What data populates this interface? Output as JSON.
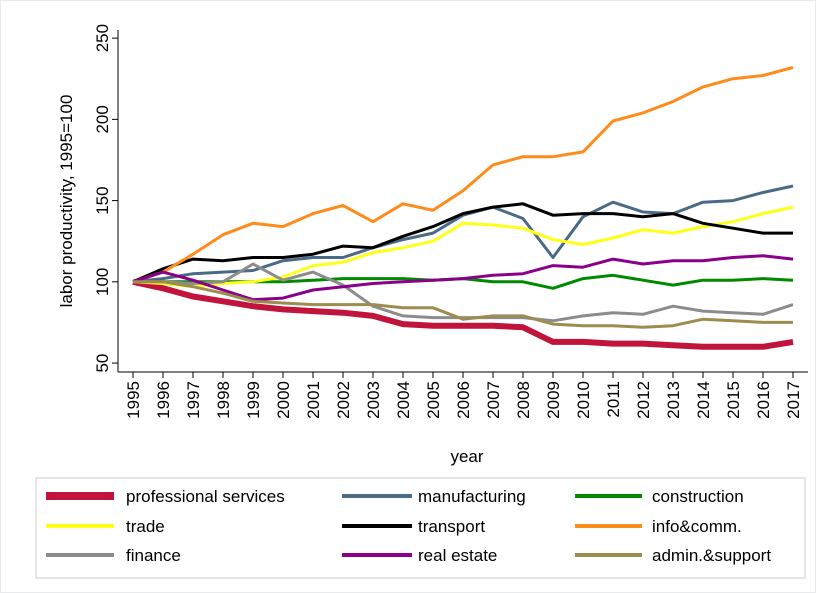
{
  "chart_data": {
    "type": "line",
    "x": [
      1995,
      1996,
      1997,
      1998,
      1999,
      2000,
      2001,
      2002,
      2003,
      2004,
      2005,
      2006,
      2007,
      2008,
      2009,
      2010,
      2011,
      2012,
      2013,
      2014,
      2015,
      2016,
      2017
    ],
    "xlim": [
      1994.5,
      2017.5
    ],
    "ylim": [
      44.5,
      255
    ],
    "yticks": [
      50,
      100,
      150,
      200,
      250
    ],
    "xlabel": "year",
    "ylabel": "labor productivity, 1995=100",
    "series": [
      {
        "name": "professional services",
        "color": "#c0143c",
        "values": [
          100,
          96,
          91,
          88,
          85,
          83,
          82,
          81,
          79,
          74,
          73,
          73,
          73,
          72,
          63,
          63,
          62,
          62,
          61,
          60,
          60,
          60,
          63
        ]
      },
      {
        "name": "manufacturing",
        "color": "#4a6a86",
        "values": [
          100,
          102,
          105,
          106,
          107,
          113,
          115,
          115,
          121,
          126,
          130,
          141,
          146,
          139,
          115,
          140,
          149,
          143,
          142,
          149,
          150,
          155,
          159
        ]
      },
      {
        "name": "construction",
        "color": "#008a00",
        "values": [
          100,
          100,
          100,
          100,
          100,
          100,
          101,
          102,
          102,
          102,
          101,
          102,
          100,
          100,
          96,
          102,
          104,
          101,
          98,
          101,
          101,
          102,
          101
        ]
      },
      {
        "name": "trade",
        "color": "#ffff1a",
        "values": [
          100,
          99,
          97,
          99,
          100,
          103,
          110,
          112,
          118,
          121,
          125,
          136,
          135,
          133,
          126,
          123,
          127,
          132,
          130,
          134,
          137,
          142,
          146
        ]
      },
      {
        "name": "transport",
        "color": "#000000",
        "values": [
          100,
          108,
          114,
          113,
          115,
          115,
          117,
          122,
          121,
          128,
          134,
          142,
          146,
          148,
          141,
          142,
          142,
          140,
          142,
          136,
          133,
          130,
          130
        ]
      },
      {
        "name": "info&comm.",
        "color": "#ff8c1a",
        "values": [
          100,
          106,
          117,
          129,
          136,
          134,
          142,
          147,
          137,
          148,
          144,
          156,
          172,
          177,
          177,
          180,
          199,
          204,
          211,
          220,
          225,
          227,
          232
        ]
      },
      {
        "name": "finance",
        "color": "#8c8c8c",
        "values": [
          100,
          100,
          99,
          100,
          111,
          101,
          106,
          98,
          85,
          79,
          78,
          78,
          78,
          78,
          76,
          79,
          81,
          80,
          85,
          82,
          81,
          80,
          86
        ]
      },
      {
        "name": "real estate",
        "color": "#8a008a",
        "values": [
          100,
          106,
          101,
          95,
          89,
          90,
          95,
          97,
          99,
          100,
          101,
          102,
          104,
          105,
          110,
          109,
          114,
          111,
          113,
          113,
          115,
          116,
          114
        ]
      },
      {
        "name": "admin.&support",
        "color": "#9c8c4e",
        "values": [
          100,
          100,
          97,
          93,
          88,
          87,
          86,
          86,
          86,
          84,
          84,
          77,
          79,
          79,
          74,
          73,
          73,
          72,
          73,
          77,
          76,
          75,
          75
        ]
      }
    ]
  }
}
